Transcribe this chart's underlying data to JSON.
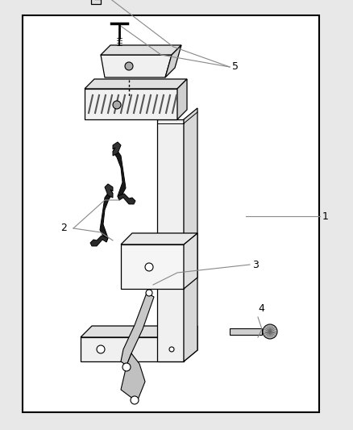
{
  "bg_color": "#e8e8e8",
  "box_color": "#ffffff",
  "line_color": "#000000",
  "label_1": "1",
  "label_2": "2",
  "label_3": "3",
  "label_4": "4",
  "label_5": "5",
  "figsize": [
    4.38,
    5.33
  ],
  "dpi": 100
}
